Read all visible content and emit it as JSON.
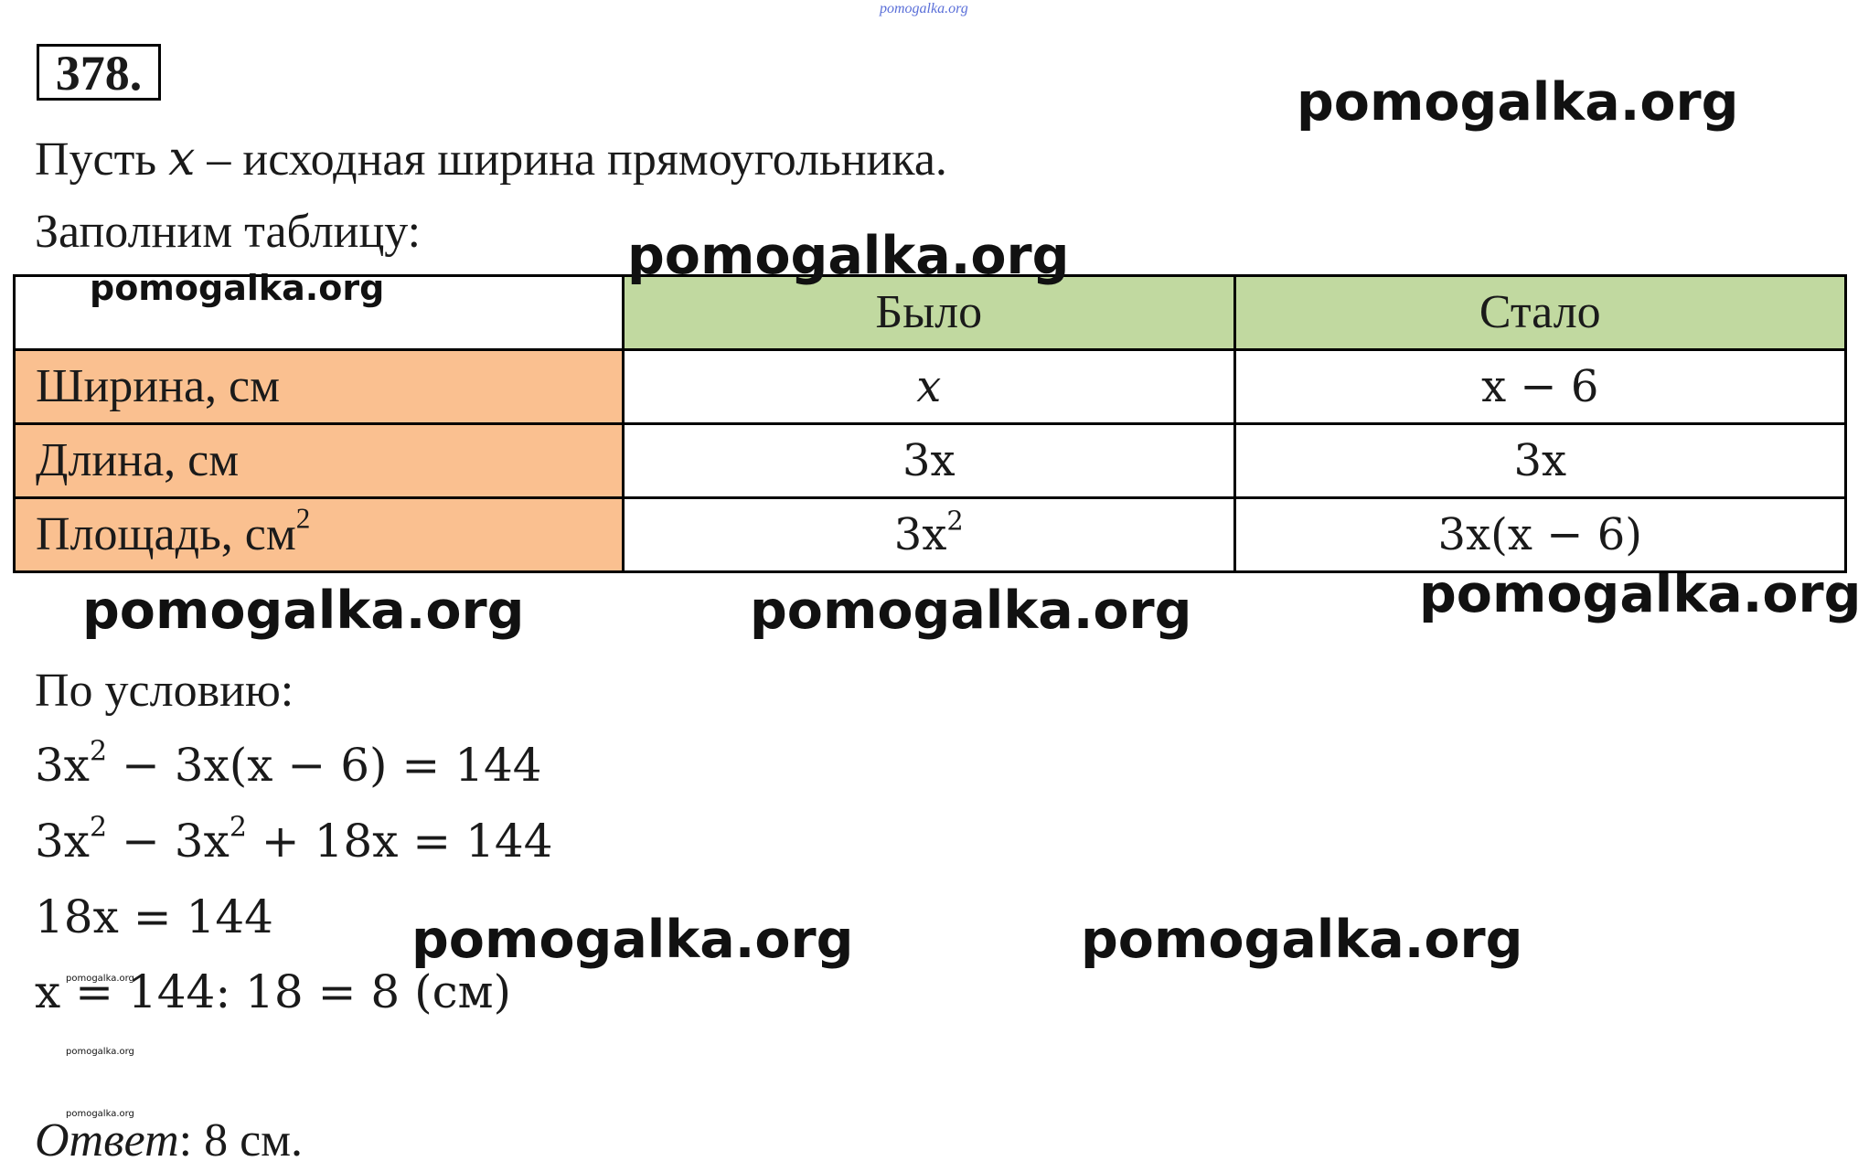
{
  "problem_number": "378.",
  "intro_line_1_before": "Пусть ",
  "intro_line_1_var": "x",
  "intro_line_1_after": " – исходная ширина прямоугольника.",
  "intro_line_2": "Заполним таблицу:",
  "table": {
    "headers": [
      "",
      "Было",
      "Стало"
    ],
    "rows": [
      {
        "label": "Ширина, см",
        "before": "x",
        "after": "x − 6"
      },
      {
        "label": "Длина, см",
        "before": "3x",
        "after": "3x"
      },
      {
        "label": "Площадь, см",
        "label_sup": "2",
        "before": "3x",
        "before_sup": "2",
        "after": "3x(x − 6)"
      }
    ]
  },
  "condition_label": "По условию:",
  "equations": [
    {
      "pre": "3x",
      "sup": "2",
      "post": " − 3x(x − 6) = 144"
    },
    {
      "pre": "3x",
      "sup": "2",
      "mid": " − 3x",
      "sup2": "2",
      "post": " + 18x = 144"
    },
    {
      "pre": "18x = 144"
    },
    {
      "pre": "x = 144: 18 = 8 (см)"
    }
  ],
  "answer_label": "Ответ",
  "answer_text": ": 8 см.",
  "watermarks": {
    "text": "pomogalka.org"
  }
}
